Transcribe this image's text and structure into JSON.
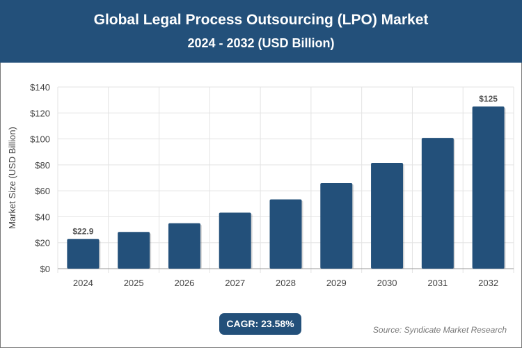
{
  "header": {
    "title": "Global Legal Process Outsourcing (LPO) Market",
    "subtitle": "2024 - 2032 (USD Billion)"
  },
  "footer": {
    "cagr": "CAGR: 23.58%",
    "source": "Source: Syndicate Market Research"
  },
  "chart_data": {
    "type": "bar",
    "title": "Global Legal Process Outsourcing (LPO) Market",
    "subtitle": "2024 - 2032 (USD Billion)",
    "xlabel": "",
    "ylabel": "Market Size (USD Billion)",
    "categories": [
      "2024",
      "2025",
      "2026",
      "2027",
      "2028",
      "2029",
      "2030",
      "2031",
      "2032"
    ],
    "values": [
      22.9,
      28.3,
      35.0,
      43.2,
      53.4,
      66.0,
      81.5,
      100.8,
      125
    ],
    "data_labels": {
      "0": "$22.9",
      "8": "$125"
    },
    "ylim": [
      0,
      140
    ],
    "yticks": [
      0,
      20,
      40,
      60,
      80,
      100,
      120,
      140
    ],
    "ytick_labels": [
      "$0",
      "$20",
      "$40",
      "$60",
      "$80",
      "$100",
      "$120",
      "$140"
    ],
    "grid": true,
    "bar_color": "#23507a"
  }
}
